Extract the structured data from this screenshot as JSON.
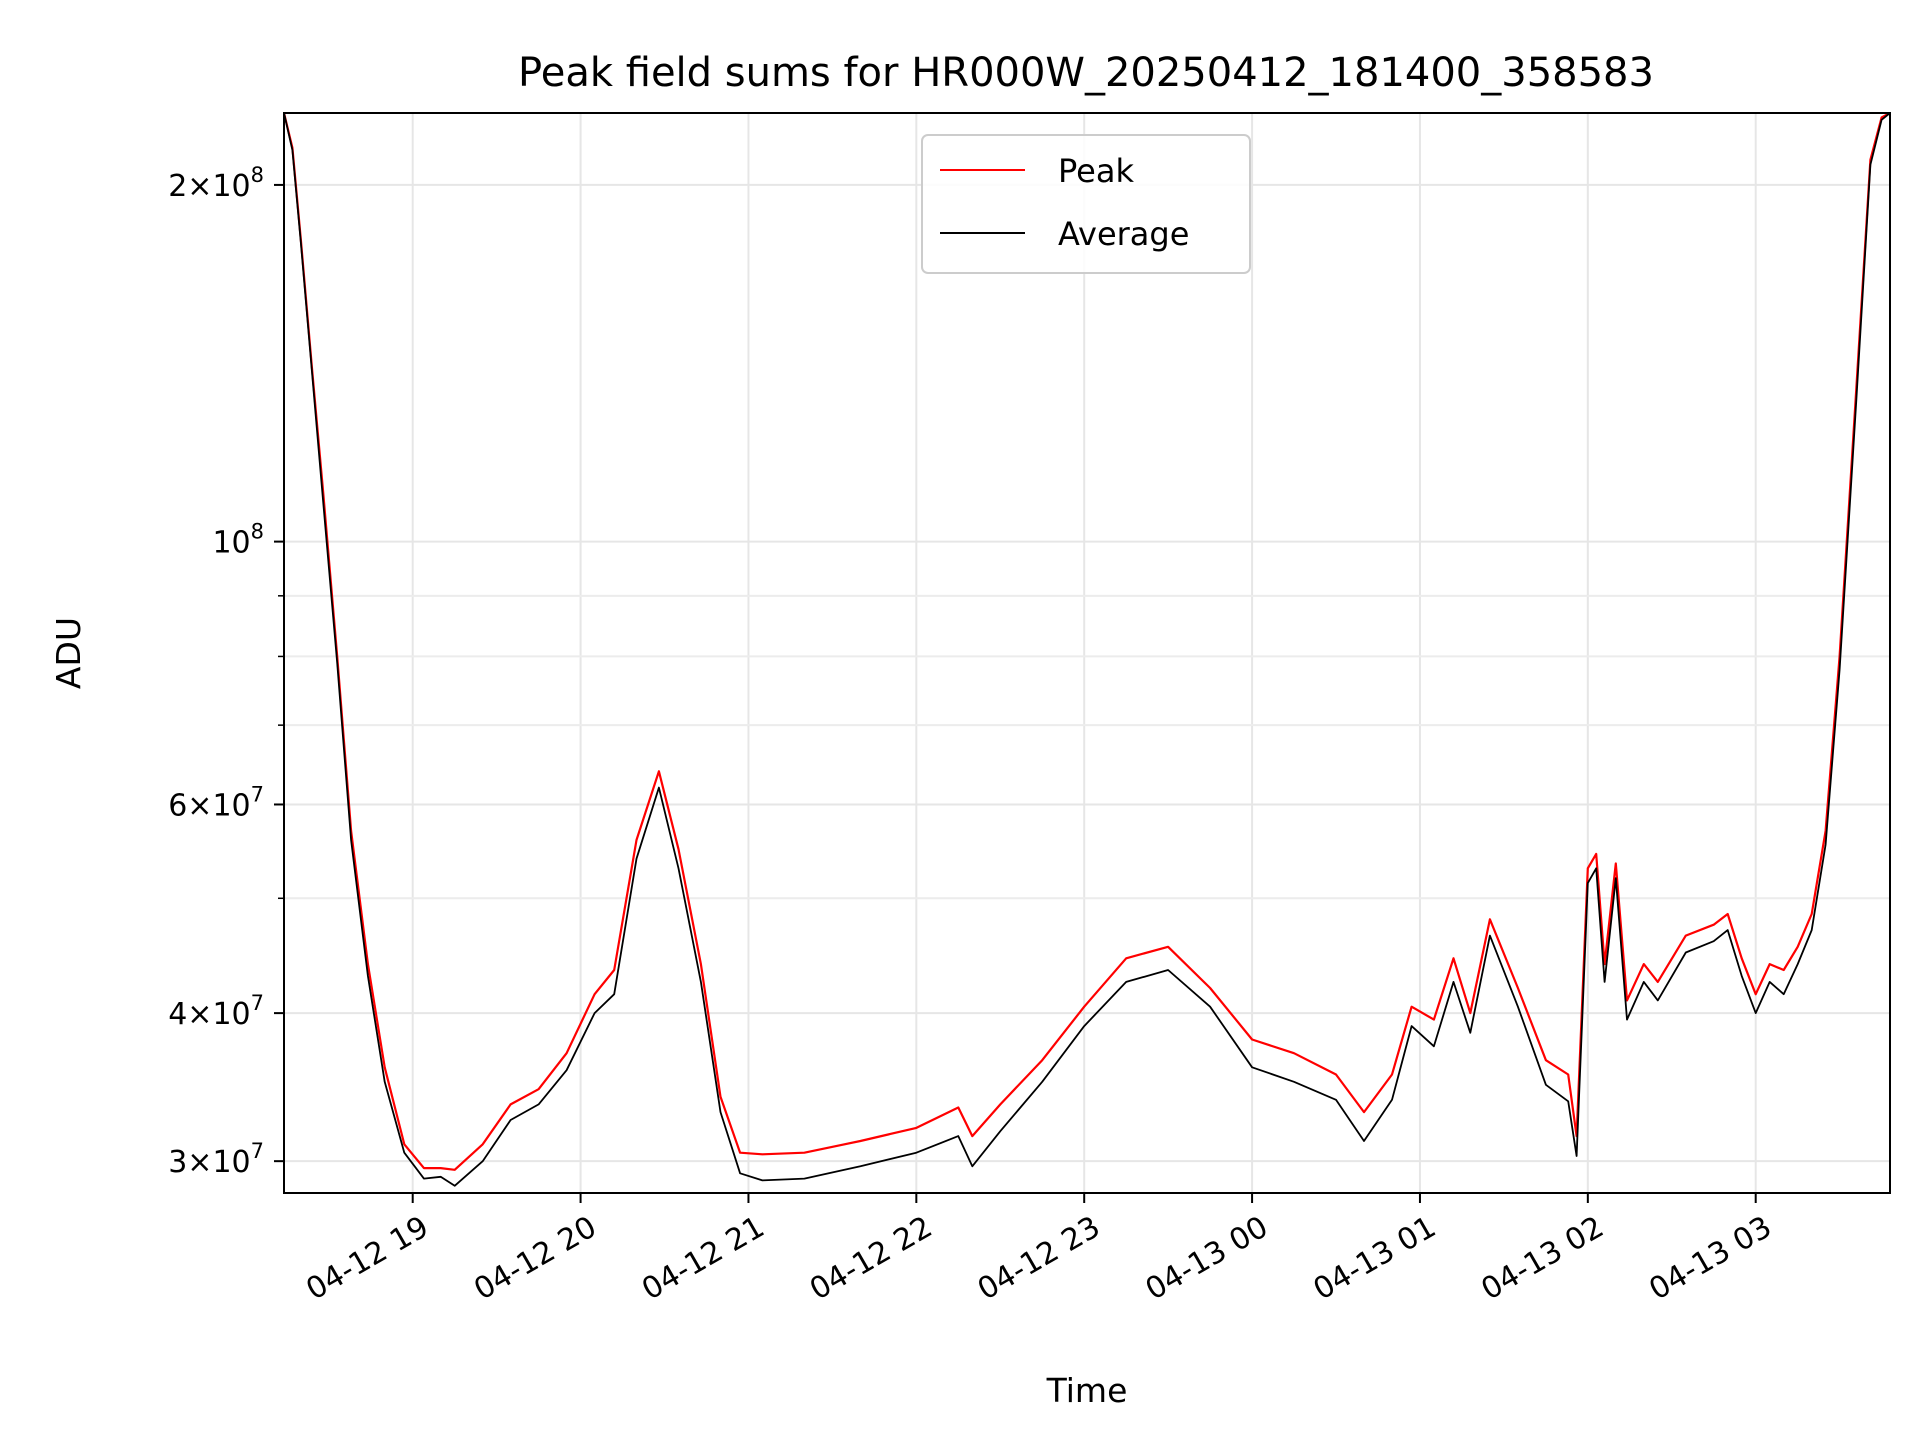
{
  "chart_data": {
    "type": "line",
    "title": "Peak field sums for HR000W_20250412_181400_358583",
    "xlabel": "Time",
    "ylabel": "ADU",
    "yscale": "log",
    "ylim": [
      28200000,
      230000000
    ],
    "xlim": [
      "2025-04-12 18:14",
      "2025-04-13 03:48"
    ],
    "grid": true,
    "legend": {
      "position": "top-center"
    },
    "x_ticks": [
      "04-12 19",
      "04-12 20",
      "04-12 21",
      "04-12 22",
      "04-12 23",
      "04-13 00",
      "04-13 01",
      "04-13 02",
      "04-13 03"
    ],
    "y_ticks": [
      {
        "value": 200000000,
        "mantissa": "2",
        "exponent": "8"
      },
      {
        "value": 100000000,
        "mantissa": "",
        "exponent": "8"
      },
      {
        "value": 60000000,
        "mantissa": "6",
        "exponent": "7"
      },
      {
        "value": 40000000,
        "mantissa": "4",
        "exponent": "7"
      },
      {
        "value": 30000000,
        "mantissa": "3",
        "exponent": "7"
      }
    ],
    "series": [
      {
        "name": "Peak",
        "color": "#ff0000",
        "x": [
          "2025-04-12 18:14",
          "2025-04-12 18:17",
          "2025-04-12 18:20",
          "2025-04-12 18:24",
          "2025-04-12 18:28",
          "2025-04-12 18:33",
          "2025-04-12 18:38",
          "2025-04-12 18:44",
          "2025-04-12 18:50",
          "2025-04-12 18:57",
          "2025-04-12 19:04",
          "2025-04-12 19:10",
          "2025-04-12 19:15",
          "2025-04-12 19:25",
          "2025-04-12 19:35",
          "2025-04-12 19:45",
          "2025-04-12 19:55",
          "2025-04-12 20:05",
          "2025-04-12 20:12",
          "2025-04-12 20:20",
          "2025-04-12 20:28",
          "2025-04-12 20:35",
          "2025-04-12 20:43",
          "2025-04-12 20:50",
          "2025-04-12 20:57",
          "2025-04-12 21:05",
          "2025-04-12 21:20",
          "2025-04-12 21:40",
          "2025-04-12 22:00",
          "2025-04-12 22:15",
          "2025-04-12 22:20",
          "2025-04-12 22:30",
          "2025-04-12 22:45",
          "2025-04-12 23:00",
          "2025-04-12 23:15",
          "2025-04-12 23:30",
          "2025-04-12 23:45",
          "2025-04-13 00:00",
          "2025-04-13 00:15",
          "2025-04-13 00:30",
          "2025-04-13 00:40",
          "2025-04-13 00:50",
          "2025-04-13 00:57",
          "2025-04-13 01:05",
          "2025-04-13 01:12",
          "2025-04-13 01:18",
          "2025-04-13 01:25",
          "2025-04-13 01:35",
          "2025-04-13 01:45",
          "2025-04-13 01:53",
          "2025-04-13 01:56",
          "2025-04-13 02:00",
          "2025-04-13 02:03",
          "2025-04-13 02:06",
          "2025-04-13 02:10",
          "2025-04-13 02:14",
          "2025-04-13 02:20",
          "2025-04-13 02:25",
          "2025-04-13 02:35",
          "2025-04-13 02:45",
          "2025-04-13 02:50",
          "2025-04-13 02:55",
          "2025-04-13 03:00",
          "2025-04-13 03:05",
          "2025-04-13 03:10",
          "2025-04-13 03:15",
          "2025-04-13 03:20",
          "2025-04-13 03:25",
          "2025-04-13 03:30",
          "2025-04-13 03:36",
          "2025-04-13 03:41",
          "2025-04-13 03:45",
          "2025-04-13 03:48"
        ],
        "y": [
          230000000,
          215000000,
          180000000,
          140000000,
          110000000,
          80000000,
          57000000,
          44000000,
          36000000,
          31000000,
          29600000,
          29600000,
          29500000,
          31000000,
          33500000,
          34500000,
          37000000,
          41500000,
          43500000,
          56000000,
          64000000,
          55000000,
          44000000,
          34000000,
          30500000,
          30400000,
          30500000,
          31200000,
          32000000,
          33300000,
          31500000,
          33500000,
          36500000,
          40500000,
          44500000,
          45500000,
          42000000,
          38000000,
          37000000,
          35500000,
          33000000,
          35500000,
          40500000,
          39500000,
          44500000,
          40000000,
          48000000,
          42000000,
          36500000,
          35500000,
          31500000,
          53000000,
          54500000,
          44000000,
          53500000,
          41000000,
          44000000,
          42500000,
          46500000,
          47500000,
          48500000,
          44500000,
          41500000,
          44000000,
          43500000,
          45500000,
          48500000,
          57000000,
          80000000,
          135000000,
          210000000,
          228000000,
          230000000
        ]
      },
      {
        "name": "Average",
        "color": "#000000",
        "x": [
          "2025-04-12 18:14",
          "2025-04-12 18:17",
          "2025-04-12 18:20",
          "2025-04-12 18:24",
          "2025-04-12 18:28",
          "2025-04-12 18:33",
          "2025-04-12 18:38",
          "2025-04-12 18:44",
          "2025-04-12 18:50",
          "2025-04-12 18:57",
          "2025-04-12 19:04",
          "2025-04-12 19:10",
          "2025-04-12 19:15",
          "2025-04-12 19:25",
          "2025-04-12 19:35",
          "2025-04-12 19:45",
          "2025-04-12 19:55",
          "2025-04-12 20:05",
          "2025-04-12 20:12",
          "2025-04-12 20:20",
          "2025-04-12 20:28",
          "2025-04-12 20:35",
          "2025-04-12 20:43",
          "2025-04-12 20:50",
          "2025-04-12 20:57",
          "2025-04-12 21:05",
          "2025-04-12 21:20",
          "2025-04-12 21:40",
          "2025-04-12 22:00",
          "2025-04-12 22:15",
          "2025-04-12 22:20",
          "2025-04-12 22:30",
          "2025-04-12 22:45",
          "2025-04-12 23:00",
          "2025-04-12 23:15",
          "2025-04-12 23:30",
          "2025-04-12 23:45",
          "2025-04-13 00:00",
          "2025-04-13 00:15",
          "2025-04-13 00:30",
          "2025-04-13 00:40",
          "2025-04-13 00:50",
          "2025-04-13 00:57",
          "2025-04-13 01:05",
          "2025-04-13 01:12",
          "2025-04-13 01:18",
          "2025-04-13 01:25",
          "2025-04-13 01:35",
          "2025-04-13 01:45",
          "2025-04-13 01:53",
          "2025-04-13 01:56",
          "2025-04-13 02:00",
          "2025-04-13 02:03",
          "2025-04-13 02:06",
          "2025-04-13 02:10",
          "2025-04-13 02:14",
          "2025-04-13 02:20",
          "2025-04-13 02:25",
          "2025-04-13 02:35",
          "2025-04-13 02:45",
          "2025-04-13 02:50",
          "2025-04-13 02:55",
          "2025-04-13 03:00",
          "2025-04-13 03:05",
          "2025-04-13 03:10",
          "2025-04-13 03:15",
          "2025-04-13 03:20",
          "2025-04-13 03:25",
          "2025-04-13 03:30",
          "2025-04-13 03:36",
          "2025-04-13 03:41",
          "2025-04-13 03:45",
          "2025-04-13 03:48"
        ],
        "y": [
          230000000,
          214000000,
          179000000,
          139000000,
          108000000,
          79000000,
          56000000,
          43000000,
          35000000,
          30500000,
          29000000,
          29100000,
          28600000,
          30000000,
          32500000,
          33500000,
          35800000,
          40000000,
          41500000,
          54000000,
          62000000,
          53000000,
          42500000,
          33000000,
          29300000,
          28900000,
          29000000,
          29700000,
          30500000,
          31500000,
          29700000,
          31800000,
          35000000,
          39000000,
          42500000,
          43500000,
          40500000,
          36000000,
          35000000,
          33800000,
          31200000,
          33800000,
          39000000,
          37500000,
          42500000,
          38500000,
          46500000,
          40500000,
          34800000,
          33700000,
          30300000,
          51500000,
          53000000,
          42500000,
          52000000,
          39500000,
          42500000,
          41000000,
          45000000,
          46000000,
          47000000,
          43000000,
          40000000,
          42500000,
          41500000,
          44000000,
          47000000,
          55500000,
          78000000,
          132000000,
          208000000,
          227000000,
          230000000
        ]
      }
    ]
  }
}
